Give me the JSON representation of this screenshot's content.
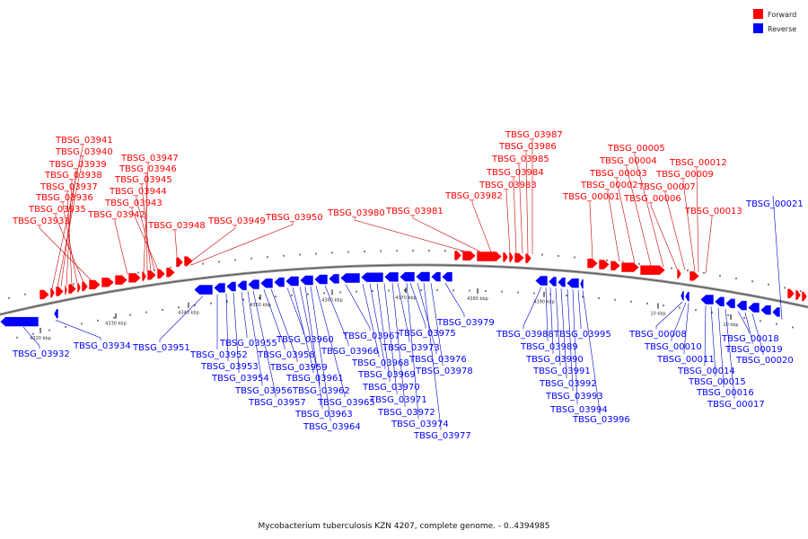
{
  "legend": [
    {
      "label": "Forward",
      "color": "#ff0000"
    },
    {
      "label": "Reverse",
      "color": "#0000ff"
    }
  ],
  "caption": "Mycobacterium tuberculosis KZN 4207, complete genome. - 0..4394985",
  "colors": {
    "forward": "#ff0000",
    "reverse": "#0000ff",
    "backbone": "#7a7a7a",
    "leader_forward": "#cc0000",
    "leader_reverse": "#0000cc"
  },
  "ticks": [
    "4320 kbp",
    "4330 kbp",
    "4340 kbp",
    "4350 kbp",
    "4360 kbp",
    "4370 kbp",
    "4380 kbp",
    "4390 kbp",
    "10 kbp",
    "20 kbp"
  ],
  "forward_labels": [
    "TBSG_03941",
    "TBSG_03940",
    "TBSG_03939",
    "TBSG_03938",
    "TBSG_03937",
    "TBSG_03936",
    "TBSG_03935",
    "TBSG_03933",
    "TBSG_03947",
    "TBSG_03946",
    "TBSG_03945",
    "TBSG_03944",
    "TBSG_03943",
    "TBSG_03942",
    "TBSG_03948",
    "TBSG_03949",
    "TBSG_03950",
    "TBSG_03980",
    "TBSG_03981",
    "TBSG_03987",
    "TBSG_03986",
    "TBSG_03985",
    "TBSG_03984",
    "TBSG_03983",
    "TBSG_03982",
    "TBSG_00005",
    "TBSG_00004",
    "TBSG_00003",
    "TBSG_00002",
    "TBSG_00001",
    "TBSG_00012",
    "TBSG_00009",
    "TBSG_00007",
    "TBSG_00006",
    "TBSG_00013"
  ],
  "reverse_labels": [
    "TBSG_03932",
    "TBSG_03934",
    "TBSG_03951",
    "TBSG_03952",
    "TBSG_03953",
    "TBSG_03954",
    "TBSG_03955",
    "TBSG_03956",
    "TBSG_03957",
    "TBSG_03958",
    "TBSG_03959",
    "TBSG_03960",
    "TBSG_03961",
    "TBSG_03962",
    "TBSG_03963",
    "TBSG_03964",
    "TBSG_03965",
    "TBSG_03966",
    "TBSG_03967",
    "TBSG_03968",
    "TBSG_03969",
    "TBSG_03970",
    "TBSG_03971",
    "TBSG_03972",
    "TBSG_03973",
    "TBSG_03974",
    "TBSG_03975",
    "TBSG_03976",
    "TBSG_03977",
    "TBSG_03978",
    "TBSG_03979",
    "TBSG_03988",
    "TBSG_03989",
    "TBSG_03990",
    "TBSG_03991",
    "TBSG_03992",
    "TBSG_03993",
    "TBSG_03994",
    "TBSG_03995",
    "TBSG_03996",
    "TBSG_00008",
    "TBSG_00010",
    "TBSG_00011",
    "TBSG_00014",
    "TBSG_00015",
    "TBSG_00016",
    "TBSG_00017",
    "TBSG_00018",
    "TBSG_00019",
    "TBSG_00020",
    "TBSG_00021"
  ]
}
